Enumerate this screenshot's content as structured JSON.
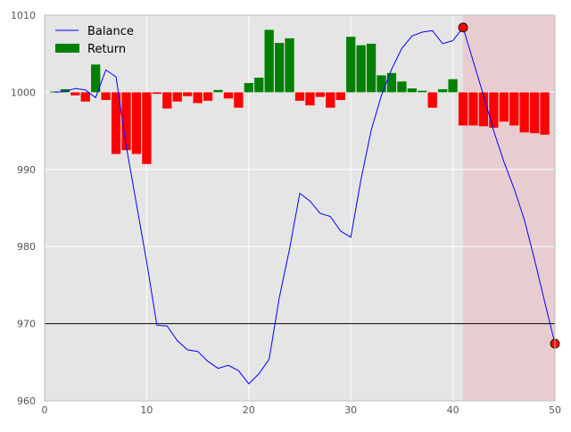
{
  "chart_data": {
    "type": "bar",
    "title": "",
    "xlabel": "",
    "ylabel": "",
    "xlim": [
      0,
      50
    ],
    "ylim": [
      960,
      1010
    ],
    "x_ticks": [
      0,
      10,
      20,
      30,
      40,
      50
    ],
    "y_ticks": [
      960,
      970,
      980,
      990,
      1000,
      1010
    ],
    "grid": true,
    "baseline": 1000,
    "reference_line": 970,
    "shaded_region": {
      "x_start": 41,
      "x_end": 50,
      "color": "#e8cdd0"
    },
    "legend": {
      "position": "top-left",
      "entries": [
        {
          "label": "Balance",
          "kind": "line",
          "color": "#0000ff"
        },
        {
          "label": "Return",
          "kind": "patch",
          "color": "#008000"
        }
      ]
    },
    "colors": {
      "positive": "#008000",
      "negative": "#ff0000",
      "line": "#0000ff",
      "background": "#e5e5e5",
      "marker": "#ff0000"
    },
    "markers": [
      {
        "x": 41,
        "y": 1008.4
      },
      {
        "x": 50,
        "y": 967.4
      }
    ],
    "series": [
      {
        "name": "Balance",
        "type": "line",
        "x": [
          1,
          2,
          3,
          4,
          5,
          6,
          7,
          8,
          9,
          10,
          11,
          12,
          13,
          14,
          15,
          16,
          17,
          18,
          19,
          20,
          21,
          22,
          23,
          24,
          25,
          26,
          27,
          28,
          29,
          30,
          31,
          32,
          33,
          34,
          35,
          36,
          37,
          38,
          39,
          40,
          41,
          42,
          43,
          44,
          45,
          46,
          47,
          48,
          49,
          50
        ],
        "values": [
          1000.0,
          1000.1,
          1000.5,
          1000.3,
          999.3,
          1002.9,
          1002.0,
          993.0,
          985.5,
          978.0,
          969.8,
          969.7,
          967.8,
          966.6,
          966.4,
          965.1,
          964.2,
          964.6,
          963.9,
          962.2,
          963.5,
          965.4,
          973.4,
          979.7,
          986.9,
          985.9,
          984.3,
          983.9,
          982.0,
          981.2,
          988.7,
          995.1,
          999.6,
          1003.0,
          1005.7,
          1007.3,
          1007.8,
          1008.0,
          1006.3,
          1006.7,
          1008.4,
          1004.0,
          999.6,
          995.0,
          991.0,
          987.5,
          983.5,
          978.3,
          972.8,
          967.4
        ]
      },
      {
        "name": "Return",
        "type": "bar",
        "x": [
          1,
          2,
          3,
          4,
          5,
          6,
          7,
          8,
          9,
          10,
          11,
          12,
          13,
          14,
          15,
          16,
          17,
          18,
          19,
          20,
          21,
          22,
          23,
          24,
          25,
          26,
          27,
          28,
          29,
          30,
          31,
          32,
          33,
          34,
          35,
          36,
          37,
          38,
          39,
          40,
          41,
          42,
          43,
          44,
          45,
          46,
          47,
          48,
          49,
          50
        ],
        "values": [
          0.1,
          0.4,
          -0.4,
          -1.2,
          3.6,
          -1.0,
          -8.0,
          -7.5,
          -8.0,
          -9.3,
          -0.2,
          -2.1,
          -1.2,
          -0.5,
          -1.4,
          -1.1,
          0.3,
          -0.8,
          -2.0,
          1.2,
          1.9,
          8.1,
          6.4,
          7.0,
          -1.1,
          -1.7,
          -0.6,
          -2.0,
          -1.0,
          7.2,
          6.1,
          6.3,
          2.2,
          2.5,
          1.4,
          0.5,
          0.2,
          -2.0,
          0.4,
          1.7,
          -4.3,
          -4.3,
          -4.4,
          -4.6,
          -3.8,
          -4.3,
          -5.2,
          -5.3,
          -5.5,
          0
        ]
      }
    ]
  }
}
